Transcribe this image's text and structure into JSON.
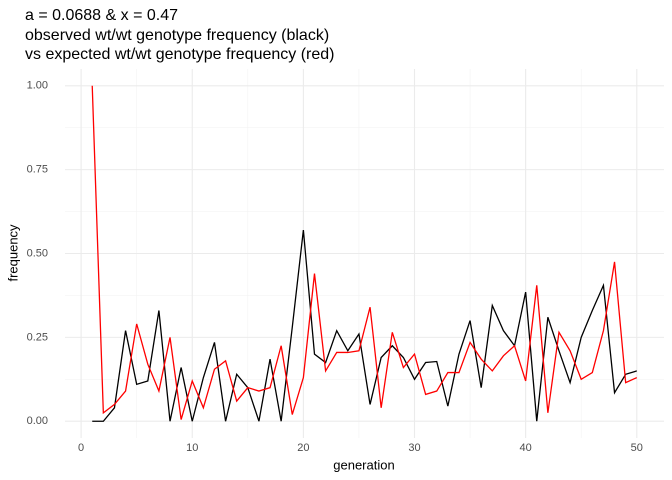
{
  "chart_data": {
    "type": "line",
    "title_lines": [
      "a = 0.0688 & x = 0.47",
      "observed wt/wt genotype frequency (black)",
      "vs expected wt/wt genotype frequency (red)"
    ],
    "xlabel": "generation",
    "ylabel": "frequency",
    "x": [
      1,
      2,
      3,
      4,
      5,
      6,
      7,
      8,
      9,
      10,
      11,
      12,
      13,
      14,
      15,
      16,
      17,
      18,
      19,
      20,
      21,
      22,
      23,
      24,
      25,
      26,
      27,
      28,
      29,
      30,
      31,
      32,
      33,
      34,
      35,
      36,
      37,
      38,
      39,
      40,
      41,
      42,
      43,
      44,
      45,
      46,
      47,
      48,
      49,
      50
    ],
    "series": [
      {
        "color": "#000000",
        "values": [
          0,
          0,
          0.04,
          0.27,
          0.11,
          0.12,
          0.33,
          0,
          0.16,
          0,
          0.13,
          0.235,
          0,
          0.14,
          0.1,
          0,
          0.185,
          0,
          0.28,
          0.57,
          0.2,
          0.175,
          0.27,
          0.21,
          0.26,
          0.05,
          0.19,
          0.225,
          0.19,
          0.125,
          0.175,
          0.178,
          0.045,
          0.2,
          0.3,
          0.1,
          0.345,
          0.27,
          0.225,
          0.385,
          0,
          0.31,
          0.21,
          0.115,
          0.25,
          0.33,
          0.405,
          0.085,
          0.14,
          0.15
        ]
      },
      {
        "color": "#ff0000",
        "values": [
          1.0,
          0.025,
          0.05,
          0.09,
          0.29,
          0.17,
          0.09,
          0.25,
          0.005,
          0.12,
          0.04,
          0.155,
          0.18,
          0.06,
          0.1,
          0.09,
          0.1,
          0.225,
          0.02,
          0.13,
          0.44,
          0.15,
          0.205,
          0.205,
          0.21,
          0.34,
          0.04,
          0.265,
          0.16,
          0.2,
          0.08,
          0.09,
          0.145,
          0.145,
          0.235,
          0.185,
          0.15,
          0.195,
          0.225,
          0.12,
          0.405,
          0.025,
          0.265,
          0.21,
          0.125,
          0.145,
          0.27,
          0.475,
          0.115,
          0.13
        ]
      }
    ],
    "xlim": [
      -1.45,
      52.45
    ],
    "ylim": [
      -0.05,
      1.05
    ],
    "xticks": [
      0,
      10,
      20,
      30,
      40,
      50
    ],
    "yticks": [
      {
        "value": 0,
        "label": "0.00"
      },
      {
        "value": 0.25,
        "label": "0.25"
      },
      {
        "value": 0.5,
        "label": "0.50"
      },
      {
        "value": 0.75,
        "label": "0.75"
      },
      {
        "value": 1,
        "label": "1.00"
      }
    ],
    "minor_xticks": [
      5,
      15,
      25,
      35,
      45
    ],
    "minor_yticks": [
      0.125,
      0.375,
      0.625,
      0.875
    ],
    "grid": true
  }
}
